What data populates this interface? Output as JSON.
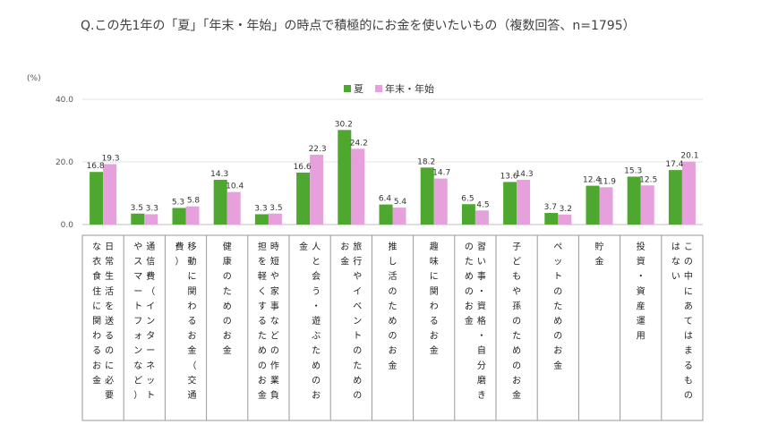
{
  "title": "Q.この先1年の「夏」「年末・年始」の時点で積極的にお金を使いたいもの（複数回答、n=1795）",
  "chart_data": {
    "type": "bar",
    "unit_label": "(%)",
    "ylim": [
      0,
      40
    ],
    "yticks": [
      "0.0",
      "20.0",
      "40.0"
    ],
    "legend_position": "top-center",
    "colors": {
      "summer": "#4ea72e",
      "newyear": "#e6a0dc"
    },
    "series": [
      {
        "name": "夏",
        "values": [
          16.8,
          3.5,
          5.3,
          14.3,
          3.3,
          16.6,
          30.2,
          6.4,
          18.2,
          6.5,
          13.6,
          3.7,
          12.4,
          15.3,
          17.4
        ]
      },
      {
        "name": "年末・年始",
        "values": [
          19.3,
          3.3,
          5.8,
          10.4,
          3.5,
          22.3,
          24.2,
          5.4,
          14.7,
          4.5,
          14.3,
          3.2,
          11.9,
          12.5,
          20.1
        ]
      }
    ],
    "categories": [
      [
        "日常生活を送るのに必要",
        "な衣食住に関わるお金"
      ],
      [
        "通信費（インターネット",
        "やスマートフォンなど）"
      ],
      [
        "移動に関わるお金（交通",
        "費）"
      ],
      [
        "健康のためのお金"
      ],
      [
        "時短や家事などの作業負",
        "担を軽くするためのお金"
      ],
      [
        "人と会う・遊ぶためのお",
        "金"
      ],
      [
        "旅行やイベントのための",
        "お金"
      ],
      [
        "推し活のためのお金"
      ],
      [
        "趣味に関わるお金"
      ],
      [
        "習い事・資格・自分磨き",
        "のためのお金"
      ],
      [
        "子どもや孫のためのお金"
      ],
      [
        "ペットのためのお金"
      ],
      [
        "貯金"
      ],
      [
        "投資・資産運用"
      ],
      [
        "この中にあてはまるもの",
        "はない"
      ]
    ]
  }
}
